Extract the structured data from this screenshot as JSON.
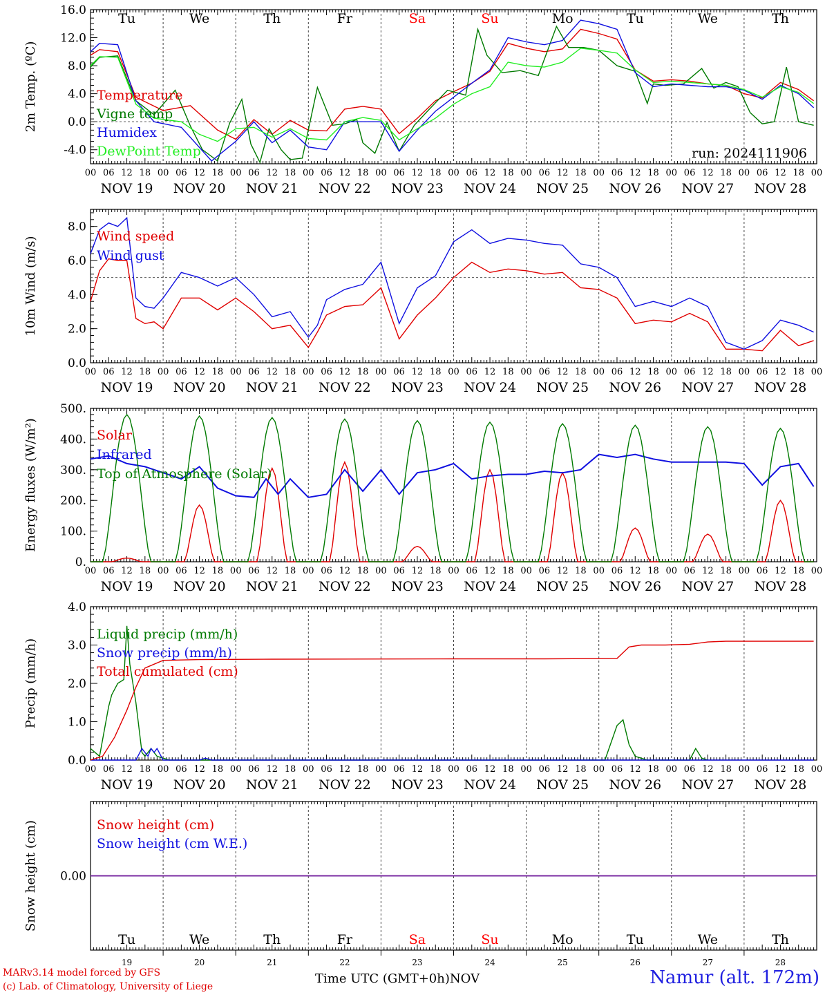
{
  "days": [
    "Tu",
    "We",
    "Th",
    "Fr",
    "Sa",
    "Su",
    "Mo",
    "Tu",
    "We",
    "Th"
  ],
  "weekend_idx": [
    4,
    5
  ],
  "dates": [
    "NOV 19",
    "NOV 20",
    "NOV 21",
    "NOV 22",
    "NOV 23",
    "NOV 24",
    "NOV 25",
    "NOV 26",
    "NOV 27",
    "NOV 28"
  ],
  "day_numbers": [
    "19",
    "20",
    "21",
    "22",
    "23",
    "24",
    "25",
    "26",
    "27",
    "28"
  ],
  "hour_ticks": [
    "00",
    "06",
    "12",
    "18"
  ],
  "run_label": "run: 2024111906",
  "footer": {
    "credit_line1": "MARv3.14 model forced by GFS",
    "credit_line2": "(c) Lab. of Climatology, University of Liege",
    "x_axis_title": "Time UTC (GMT+0h)",
    "month": "NOV",
    "station": "Namur (alt. 172m)"
  },
  "colors": {
    "red": "#e00000",
    "green": "#007a00",
    "blue": "#1010e0",
    "lightgreen": "#22ee22",
    "purple": "#7a2aa0",
    "weekend": "#ff0000"
  },
  "chart_data": [
    {
      "type": "line",
      "ylabel": "2m Temp. (ºC)",
      "ylim": [
        -6,
        16
      ],
      "yticks": [
        "16.0",
        "12.0",
        "8.0",
        "4.0",
        "0.0",
        "-4.0"
      ],
      "ytick_values": [
        16,
        12,
        8,
        4,
        0,
        -4
      ],
      "ref_line": 0,
      "x_unit": "hours since NOV 19 00 UTC",
      "series": [
        {
          "name": "Temperature",
          "color": "red",
          "x": [
            0,
            3,
            9,
            15,
            24,
            33,
            42,
            48,
            54,
            60,
            66,
            72,
            78,
            84,
            90,
            96,
            102,
            108,
            114,
            120,
            126,
            132,
            138,
            144,
            150,
            156,
            162,
            168,
            174,
            180,
            186,
            192,
            198,
            204,
            210,
            216,
            222,
            228,
            234,
            239
          ],
          "y": [
            9.5,
            10.3,
            10.0,
            3.5,
            1.6,
            2.3,
            -1.2,
            -2.5,
            0.3,
            -1.8,
            0.2,
            -1.2,
            -1.3,
            1.8,
            2.2,
            1.8,
            -1.7,
            0.5,
            3.0,
            4.3,
            5.5,
            7.2,
            11.2,
            10.5,
            10.0,
            10.4,
            13.2,
            12.6,
            11.8,
            7.4,
            5.8,
            6.0,
            5.8,
            5.4,
            5.2,
            4.0,
            3.4,
            5.6,
            4.6,
            3.0
          ]
        },
        {
          "name": "Vigne temp",
          "color": "green",
          "x": [
            0,
            3,
            9,
            15,
            21,
            28,
            33,
            37,
            42,
            46,
            50,
            53,
            56,
            59,
            63,
            66,
            70,
            75,
            80,
            84,
            88,
            90,
            94,
            98,
            102,
            107,
            112,
            118,
            124,
            128,
            131,
            136,
            142,
            148,
            154,
            158,
            163,
            168,
            174,
            180,
            184,
            186,
            190,
            196,
            202,
            206,
            210,
            214,
            218,
            222,
            226,
            230,
            234,
            239
          ],
          "y": [
            7.8,
            9.2,
            9.4,
            3.0,
            1.0,
            4.5,
            -0.6,
            -4.0,
            -5.6,
            -0.2,
            3.2,
            -3.2,
            -5.8,
            -1.0,
            -4.0,
            -5.4,
            -5.2,
            4.9,
            -0.5,
            -0.3,
            0.3,
            -3.0,
            -4.5,
            -0.1,
            -4.2,
            -0.5,
            1.8,
            4.5,
            3.8,
            13.2,
            9.5,
            7.0,
            7.3,
            6.6,
            13.6,
            10.6,
            10.6,
            10.2,
            8.0,
            7.2,
            2.6,
            5.4,
            5.2,
            5.4,
            7.6,
            4.8,
            5.6,
            5.0,
            1.3,
            -0.3,
            0.0,
            7.8,
            0.0,
            -0.5
          ]
        },
        {
          "name": "Humidex",
          "color": "blue",
          "x": [
            0,
            3,
            9,
            15,
            21,
            30,
            40,
            48,
            54,
            60,
            66,
            72,
            78,
            84,
            90,
            96,
            102,
            108,
            114,
            120,
            126,
            132,
            138,
            144,
            150,
            156,
            162,
            168,
            174,
            180,
            186,
            192,
            198,
            204,
            210,
            216,
            222,
            228,
            234,
            239
          ],
          "y": [
            10.0,
            11.2,
            11.0,
            3.0,
            0.0,
            -0.8,
            -5.6,
            -2.8,
            0.0,
            -3.0,
            -1.2,
            -3.6,
            -4.0,
            0.0,
            0.0,
            0.0,
            -4.2,
            -1.2,
            1.5,
            3.5,
            5.5,
            7.4,
            12.0,
            11.4,
            11.0,
            11.6,
            14.5,
            14.0,
            13.2,
            7.0,
            5.0,
            5.4,
            5.2,
            5.0,
            5.0,
            4.5,
            3.2,
            5.2,
            4.0,
            2.0
          ]
        },
        {
          "name": "DewPoint Temp",
          "color": "lightgreen",
          "x": [
            0,
            3,
            9,
            15,
            21,
            30,
            36,
            42,
            48,
            54,
            60,
            66,
            72,
            78,
            84,
            90,
            96,
            102,
            108,
            114,
            120,
            126,
            132,
            138,
            144,
            150,
            156,
            162,
            168,
            174,
            180,
            186,
            192,
            198,
            204,
            210,
            216,
            222,
            228,
            234,
            239
          ],
          "y": [
            8.0,
            9.3,
            9.2,
            2.5,
            0.5,
            0.0,
            -1.8,
            -2.8,
            -1.0,
            -0.8,
            -2.2,
            -1.0,
            -2.4,
            -2.6,
            0.0,
            0.6,
            0.2,
            -2.6,
            -1.0,
            0.5,
            2.5,
            4.0,
            5.0,
            8.5,
            8.0,
            7.8,
            8.5,
            10.5,
            10.2,
            9.8,
            7.4,
            5.6,
            5.8,
            5.6,
            5.4,
            5.2,
            4.6,
            3.5,
            5.0,
            4.2,
            2.6
          ]
        }
      ]
    },
    {
      "type": "line",
      "ylabel": "10m Wind (m/s)",
      "ylim": [
        0,
        9
      ],
      "yticks": [
        "8.0",
        "6.0",
        "4.0",
        "2.0",
        "0.0"
      ],
      "ytick_values": [
        8,
        6,
        4,
        2,
        0
      ],
      "ref_line": 5,
      "x_unit": "hours since NOV 19 00 UTC",
      "series": [
        {
          "name": "Wind speed",
          "color": "red",
          "x": [
            0,
            3,
            6,
            9,
            12,
            15,
            18,
            21,
            24,
            30,
            36,
            42,
            48,
            54,
            60,
            66,
            72,
            75,
            78,
            84,
            90,
            96,
            102,
            108,
            114,
            120,
            126,
            132,
            138,
            144,
            150,
            156,
            162,
            168,
            174,
            180,
            186,
            192,
            198,
            204,
            210,
            216,
            222,
            228,
            234,
            239
          ],
          "y": [
            3.6,
            5.4,
            6.1,
            6.0,
            6.0,
            2.6,
            2.3,
            2.4,
            2.0,
            3.8,
            3.8,
            3.1,
            3.8,
            3.0,
            2.0,
            2.2,
            0.9,
            1.8,
            2.8,
            3.3,
            3.4,
            4.4,
            1.4,
            2.8,
            3.8,
            5.0,
            5.9,
            5.3,
            5.5,
            5.4,
            5.2,
            5.3,
            4.4,
            4.3,
            3.8,
            2.3,
            2.5,
            2.4,
            2.9,
            2.4,
            0.8,
            0.8,
            0.7,
            1.9,
            1.0,
            1.3
          ]
        },
        {
          "name": "Wind gust",
          "color": "blue",
          "x": [
            0,
            3,
            6,
            9,
            12,
            15,
            18,
            21,
            24,
            30,
            36,
            42,
            48,
            54,
            60,
            66,
            72,
            75,
            78,
            84,
            90,
            96,
            102,
            108,
            114,
            120,
            126,
            132,
            138,
            144,
            150,
            156,
            162,
            168,
            174,
            180,
            186,
            192,
            198,
            204,
            210,
            216,
            222,
            228,
            234,
            239
          ],
          "y": [
            6.4,
            7.8,
            8.2,
            8.0,
            8.5,
            3.8,
            3.3,
            3.2,
            3.8,
            5.3,
            5.0,
            4.5,
            5.0,
            4.0,
            2.7,
            3.0,
            1.5,
            2.2,
            3.7,
            4.3,
            4.6,
            5.9,
            2.3,
            4.4,
            5.1,
            7.1,
            7.8,
            7.0,
            7.3,
            7.2,
            7.0,
            6.9,
            5.8,
            5.6,
            5.0,
            3.3,
            3.6,
            3.3,
            3.8,
            3.3,
            1.2,
            0.8,
            1.3,
            2.5,
            2.2,
            1.8
          ]
        }
      ]
    },
    {
      "type": "line",
      "ylabel": "Energy fluxes (W/m²)",
      "ylim": [
        0,
        500
      ],
      "yticks": [
        "500.",
        "400.",
        "300.",
        "200.",
        "100.",
        "0."
      ],
      "ytick_values": [
        500,
        400,
        300,
        200,
        100,
        0
      ],
      "x_unit": "hours since NOV 19 00 UTC",
      "series": [
        {
          "name": "Solar",
          "color": "red",
          "peaks": [
            12,
            36,
            60,
            84,
            108,
            132,
            156,
            180,
            204,
            228
          ],
          "peak_values": [
            12,
            185,
            305,
            325,
            50,
            300,
            290,
            110,
            90,
            200
          ]
        },
        {
          "name": "Infrared",
          "color": "blue",
          "x": [
            0,
            6,
            12,
            18,
            24,
            30,
            36,
            42,
            48,
            54,
            58,
            62,
            66,
            72,
            78,
            84,
            90,
            96,
            102,
            108,
            114,
            120,
            126,
            132,
            138,
            144,
            150,
            156,
            162,
            168,
            174,
            180,
            186,
            192,
            198,
            204,
            210,
            216,
            222,
            228,
            234,
            239
          ],
          "y": [
            335,
            345,
            320,
            310,
            290,
            270,
            310,
            240,
            215,
            210,
            270,
            220,
            270,
            210,
            220,
            300,
            230,
            300,
            220,
            290,
            300,
            320,
            270,
            280,
            285,
            285,
            295,
            290,
            300,
            350,
            340,
            350,
            335,
            325,
            325,
            325,
            325,
            320,
            250,
            310,
            320,
            245
          ]
        },
        {
          "name": "Top of Atmosphere (Solar)",
          "color": "green",
          "peaks": [
            12,
            36,
            60,
            84,
            108,
            132,
            156,
            180,
            204,
            228
          ],
          "peak_values": [
            480,
            475,
            470,
            465,
            460,
            455,
            450,
            445,
            440,
            435
          ]
        }
      ]
    },
    {
      "type": "line",
      "ylabel": "Precip (mm/h)",
      "ylim": [
        0,
        4
      ],
      "yticks": [
        "4.0",
        "3.0",
        "2.0",
        "1.0",
        "0.0"
      ],
      "ytick_values": [
        4,
        3,
        2,
        1,
        0
      ],
      "x_unit": "hours since NOV 19 00 UTC",
      "series": [
        {
          "name": "Liquid precip (mm/h)",
          "color": "green",
          "x": [
            0,
            3,
            6,
            7,
            9,
            11,
            12,
            13,
            15,
            17,
            18,
            20,
            22,
            24,
            26,
            30,
            170,
            174,
            176,
            178,
            180,
            184,
            198,
            200,
            202,
            204
          ],
          "y": [
            0.3,
            0.1,
            1.4,
            1.7,
            2.0,
            2.1,
            3.5,
            2.5,
            1.5,
            0.2,
            0.1,
            0.3,
            0.1,
            0.05,
            0.0,
            0.0,
            0.0,
            0.9,
            1.05,
            0.4,
            0.1,
            0.0,
            0.0,
            0.3,
            0.05,
            0.0
          ]
        },
        {
          "name": "Snow precip (mm/h)",
          "color": "blue",
          "x": [
            0,
            15,
            17,
            19,
            20,
            21,
            22,
            23,
            24,
            26,
            36,
            38,
            40,
            239
          ],
          "y": [
            0.0,
            0.0,
            0.3,
            0.1,
            0.3,
            0.2,
            0.3,
            0.15,
            0.0,
            0.0,
            0.0,
            0.05,
            0.0,
            0.0
          ]
        },
        {
          "name": "Total cumulated (cm)",
          "color": "red",
          "x": [
            0,
            4,
            8,
            12,
            15,
            18,
            24,
            36,
            60,
            120,
            150,
            174,
            178,
            182,
            190,
            198,
            204,
            210,
            239
          ],
          "y": [
            0.0,
            0.1,
            0.6,
            1.3,
            1.9,
            2.4,
            2.6,
            2.62,
            2.63,
            2.64,
            2.64,
            2.65,
            2.95,
            3.0,
            3.0,
            3.02,
            3.08,
            3.1,
            3.1
          ]
        }
      ]
    },
    {
      "type": "line",
      "ylabel": "Snow height (cm)",
      "ylim": [
        -1,
        1
      ],
      "yticks": [
        "0.00"
      ],
      "ytick_values": [
        0
      ],
      "x_unit": "hours since NOV 19 00 UTC",
      "series": [
        {
          "name": "Snow height (cm)",
          "color": "red",
          "x": [
            0,
            239
          ],
          "y": [
            0,
            0
          ]
        },
        {
          "name": "Snow height (cm W.E.)",
          "color": "blue",
          "x": [
            0,
            239
          ],
          "y": [
            0,
            0
          ]
        }
      ]
    }
  ]
}
